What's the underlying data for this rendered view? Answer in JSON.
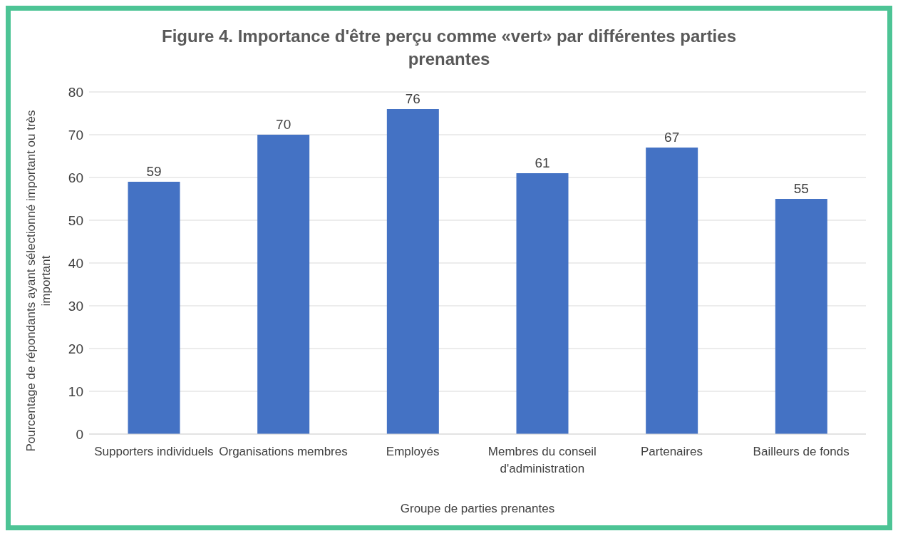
{
  "chart_data": {
    "type": "bar",
    "title": "Figure 4. Importance d'être perçu comme «vert» par différentes parties prenantes",
    "xlabel": "Groupe de parties prenantes",
    "ylabel": "Pourcentage de répondants ayant sélectionné important ou très important",
    "categories": [
      "Supporters individuels",
      "Organisations membres",
      "Employés",
      "Membres du conseil d'administration",
      "Partenaires",
      "Bailleurs de fonds"
    ],
    "values": [
      59,
      70,
      76,
      61,
      67,
      55
    ],
    "color": "#4472c4",
    "ylim": [
      0,
      80
    ],
    "yticks": [
      0,
      10,
      20,
      30,
      40,
      50,
      60,
      70,
      80
    ],
    "grid": "y",
    "data_labels": true
  }
}
